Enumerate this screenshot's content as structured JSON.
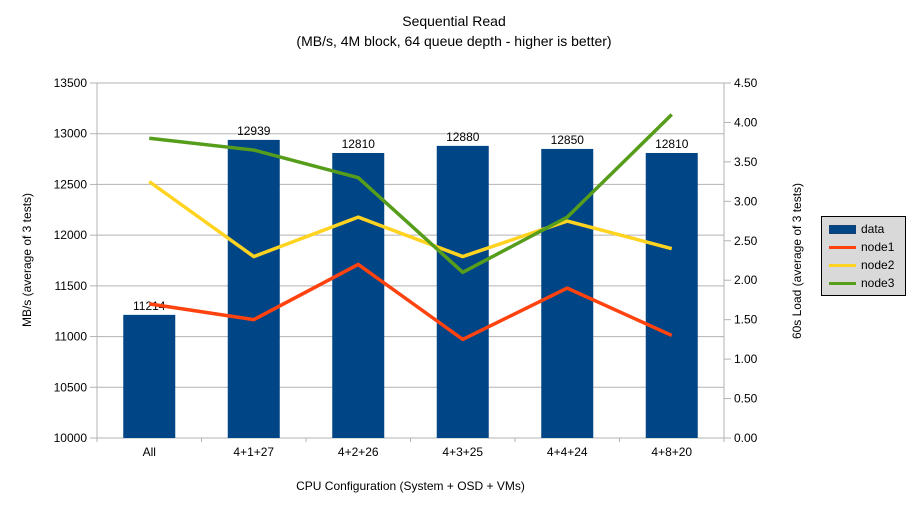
{
  "title": {
    "line1": "Sequential Read",
    "line2": "(MB/s, 4M block, 64 queue depth - higher is better)"
  },
  "chart_data": {
    "type": "bar",
    "subtype": "combo-bar-line-dual-axis",
    "categories": [
      "All",
      "4+1+27",
      "4+2+26",
      "4+3+25",
      "4+4+24",
      "4+8+20"
    ],
    "bar_series": {
      "name": "data",
      "axis": "left",
      "color": "#004586",
      "values": [
        11214,
        12939,
        12810,
        12880,
        12850,
        12810
      ],
      "data_labels": [
        "11214",
        "12939",
        "12810",
        "12880",
        "12850",
        "12810"
      ]
    },
    "line_series": [
      {
        "name": "node1",
        "axis": "right",
        "color": "#FF420E",
        "values": [
          1.7,
          1.5,
          2.2,
          1.25,
          1.9,
          1.3
        ]
      },
      {
        "name": "node2",
        "axis": "right",
        "color": "#FFD320",
        "values": [
          3.25,
          2.3,
          2.8,
          2.3,
          2.75,
          2.4
        ]
      },
      {
        "name": "node3",
        "axis": "right",
        "color": "#579D1C",
        "values": [
          3.8,
          3.65,
          3.3,
          2.1,
          2.8,
          4.1
        ]
      }
    ],
    "left_axis": {
      "label": "MB/s (average of 3 tests)",
      "min": 10000,
      "max": 13500,
      "step": 500,
      "ticks": [
        "10000",
        "10500",
        "11000",
        "11500",
        "12000",
        "12500",
        "13000",
        "13500"
      ]
    },
    "right_axis": {
      "label": "60s Load (average of 3 tests)",
      "min": 0,
      "max": 4.5,
      "step": 0.5,
      "ticks": [
        "0.00",
        "0.50",
        "1.00",
        "1.50",
        "2.00",
        "2.50",
        "3.00",
        "3.50",
        "4.00",
        "4.50"
      ]
    },
    "x_axis": {
      "label": "CPU Configuration (System + OSD + VMs)"
    },
    "legend": {
      "position": "right",
      "items": [
        {
          "label": "data",
          "color": "#004586",
          "marker": "bar"
        },
        {
          "label": "node1",
          "color": "#FF420E",
          "marker": "line"
        },
        {
          "label": "node2",
          "color": "#FFD320",
          "marker": "line"
        },
        {
          "label": "node3",
          "color": "#579D1C",
          "marker": "line"
        }
      ]
    },
    "grid": {
      "horizontal": true,
      "color": "#b3b3b3"
    },
    "background": "#ffffff",
    "text_color": "#000000"
  }
}
